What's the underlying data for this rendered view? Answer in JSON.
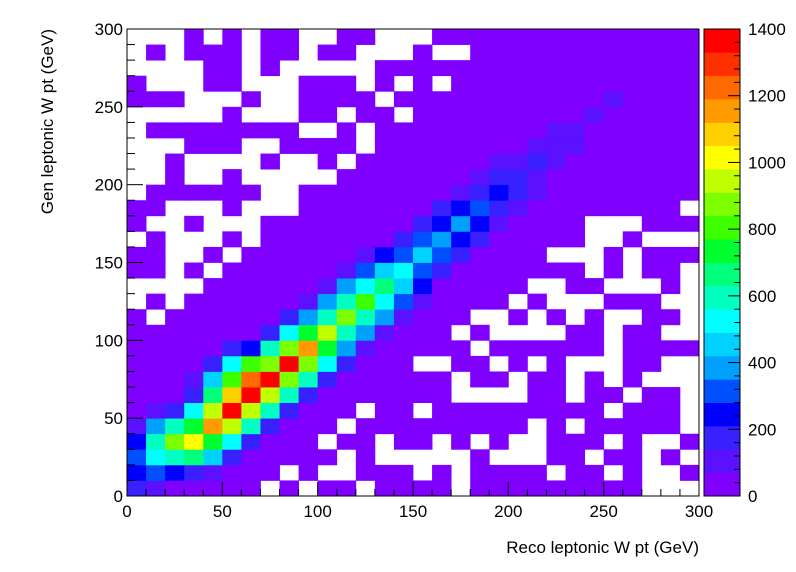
{
  "chart_data": {
    "type": "heatmap",
    "title": "",
    "xlabel": "Reco leptonic W pt (GeV)",
    "ylabel": "Gen leptonic W pt (GeV)",
    "xlim": [
      0,
      300
    ],
    "ylim": [
      0,
      300
    ],
    "zlim": [
      0,
      1400
    ],
    "xticks": [
      0,
      50,
      100,
      150,
      200,
      250,
      300
    ],
    "yticks": [
      0,
      50,
      100,
      150,
      200,
      250,
      300
    ],
    "zticks": [
      0,
      200,
      400,
      600,
      800,
      1000,
      1200,
      1400
    ],
    "bins": {
      "nx": 30,
      "ny": 30,
      "x_width": 10,
      "y_width": 10
    },
    "ridge": [
      {
        "x": 5,
        "y": 5,
        "value": 180
      },
      {
        "x": 15,
        "y": 25,
        "value": 500
      },
      {
        "x": 25,
        "y": 35,
        "value": 850
      },
      {
        "x": 35,
        "y": 35,
        "value": 1000
      },
      {
        "x": 45,
        "y": 45,
        "value": 1150
      },
      {
        "x": 55,
        "y": 55,
        "value": 1400
      },
      {
        "x": 55,
        "y": 65,
        "value": 1050
      },
      {
        "x": 65,
        "y": 65,
        "value": 1400
      },
      {
        "x": 65,
        "y": 75,
        "value": 1250
      },
      {
        "x": 75,
        "y": 75,
        "value": 1350
      },
      {
        "x": 85,
        "y": 85,
        "value": 1350
      },
      {
        "x": 95,
        "y": 95,
        "value": 1150
      },
      {
        "x": 105,
        "y": 105,
        "value": 950
      },
      {
        "x": 115,
        "y": 115,
        "value": 900
      },
      {
        "x": 125,
        "y": 125,
        "value": 800
      },
      {
        "x": 135,
        "y": 135,
        "value": 650
      },
      {
        "x": 145,
        "y": 145,
        "value": 500
      },
      {
        "x": 155,
        "y": 155,
        "value": 450
      },
      {
        "x": 165,
        "y": 165,
        "value": 400
      },
      {
        "x": 175,
        "y": 175,
        "value": 350
      },
      {
        "x": 185,
        "y": 185,
        "value": 280
      },
      {
        "x": 195,
        "y": 195,
        "value": 230
      },
      {
        "x": 205,
        "y": 205,
        "value": 180
      },
      {
        "x": 215,
        "y": 215,
        "value": 150
      },
      {
        "x": 225,
        "y": 225,
        "value": 120
      },
      {
        "x": 235,
        "y": 235,
        "value": 100
      },
      {
        "x": 245,
        "y": 245,
        "value": 90
      },
      {
        "x": 255,
        "y": 255,
        "value": 80
      }
    ],
    "palette": [
      "#7f00ff",
      "#5b10ff",
      "#3920ff",
      "#0000ff",
      "#0050ff",
      "#00a0ff",
      "#00d2ff",
      "#00ffff",
      "#00ffc0",
      "#00ff7a",
      "#00ff2e",
      "#3cff00",
      "#7cff00",
      "#c0ff00",
      "#ffff00",
      "#ffd000",
      "#ff9a00",
      "#ff6a00",
      "#ff3000",
      "#ff0000"
    ]
  }
}
